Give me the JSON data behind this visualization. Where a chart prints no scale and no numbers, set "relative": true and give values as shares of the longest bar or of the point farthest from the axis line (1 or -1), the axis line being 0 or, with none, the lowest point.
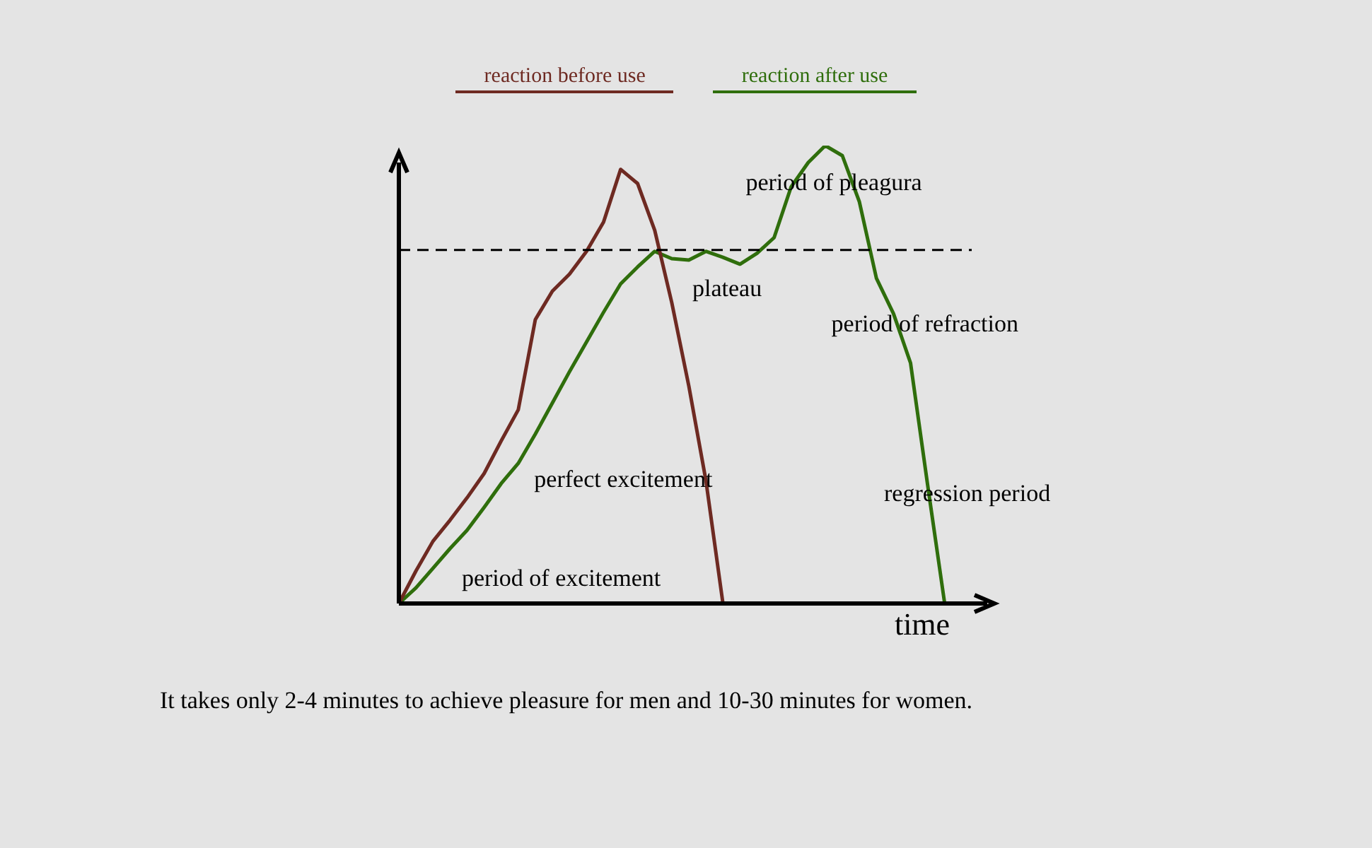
{
  "chart_data": {
    "type": "line",
    "relative": true,
    "xlabel": "time",
    "legend": "top",
    "tick_labels": false,
    "categories": [
      null,
      null,
      null,
      null,
      null,
      null,
      null,
      null,
      null,
      null,
      null,
      null,
      null,
      null,
      null,
      null,
      null,
      null,
      null,
      null,
      null,
      null,
      null,
      null,
      null,
      null,
      null,
      null,
      null,
      null,
      null,
      null,
      null,
      null,
      null
    ],
    "series": [
      {
        "name": "reaction before use",
        "color": "#6e2a22",
        "values": [
          0,
          0.071,
          0.136,
          0.182,
          0.231,
          0.284,
          0.355,
          0.423,
          0.62,
          0.682,
          0.719,
          0.769,
          0.833,
          0.948,
          0.917,
          0.815,
          0.657,
          0.475,
          0.269,
          0,
          null,
          null,
          null,
          null,
          null,
          null,
          null,
          null,
          null,
          null,
          null,
          null,
          null,
          null,
          null
        ]
      },
      {
        "name": "reaction after use",
        "color": "#2f6e0c",
        "values": [
          0,
          0.034,
          0.077,
          0.12,
          0.16,
          0.21,
          0.262,
          0.306,
          0.37,
          0.438,
          0.506,
          0.571,
          0.636,
          0.698,
          0.735,
          0.769,
          0.753,
          0.75,
          0.769,
          0.756,
          0.741,
          0.765,
          0.799,
          0.91,
          0.963,
          1,
          0.978,
          0.877,
          0.71,
          0.633,
          0.525,
          0.259,
          0,
          null,
          null
        ]
      }
    ],
    "ref_lines": [
      {
        "axis": "y",
        "value": 0.772,
        "color": "#000000",
        "line_style": "dashed"
      }
    ],
    "annotations": [
      "period of excitement",
      "perfect excitement",
      "plateau",
      "period of pleagura",
      "period of refraction",
      "regression period",
      "It takes only 2-4 minutes to achieve pleasure for men and 10-30 minutes for women."
    ]
  }
}
